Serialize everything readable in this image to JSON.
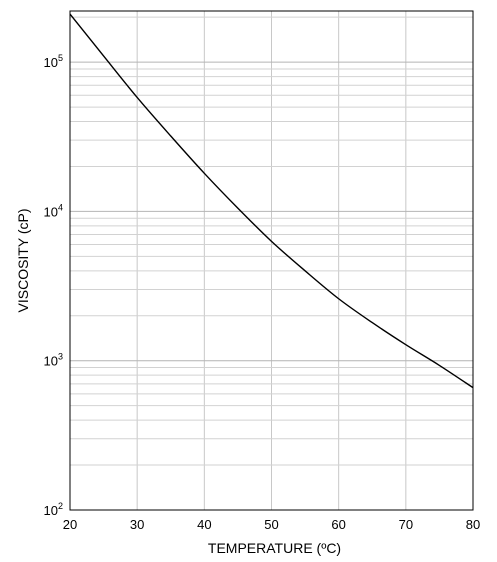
{
  "chart_data": {
    "type": "line",
    "xlabel": "TEMPERATURE (ºC)",
    "ylabel": "VISCOSITY (cP)",
    "x_scale": "linear",
    "y_scale": "log",
    "xlim": [
      20,
      80
    ],
    "ylim": [
      100,
      220000
    ],
    "grid": true,
    "x_ticks": [
      20,
      30,
      40,
      50,
      60,
      70,
      80
    ],
    "y_ticks": [
      {
        "base": "10",
        "exp": "2",
        "value": 100
      },
      {
        "base": "10",
        "exp": "3",
        "value": 1000
      },
      {
        "base": "10",
        "exp": "4",
        "value": 10000
      },
      {
        "base": "10",
        "exp": "5",
        "value": 100000
      }
    ],
    "series": [
      {
        "color": "#000000",
        "x": [
          20,
          25,
          30,
          35,
          40,
          45,
          50,
          55,
          60,
          65,
          70,
          75,
          80
        ],
        "y": [
          210000,
          110000,
          58000,
          32000,
          18000,
          10500,
          6300,
          4000,
          2600,
          1800,
          1280,
          930,
          660
        ]
      }
    ]
  }
}
